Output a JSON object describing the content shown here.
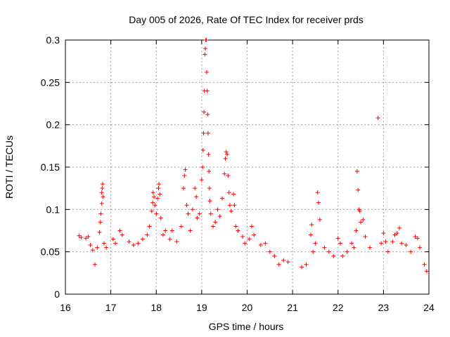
{
  "chart_data": {
    "type": "scatter",
    "title": "Day 005 of 2026, Rate Of TEC Index for receiver prds",
    "xlabel": "GPS time / hours",
    "ylabel": "ROTI / TECUs",
    "xlim": [
      16,
      24
    ],
    "ylim": [
      0,
      0.3
    ],
    "grid": true,
    "marker": "+",
    "color": "#ff0000",
    "x_ticks": [
      "16",
      "17",
      "18",
      "19",
      "20",
      "21",
      "22",
      "23",
      "24"
    ],
    "y_ticks": [
      "0",
      "0.05",
      "0.1",
      "0.15",
      "0.2",
      "0.25",
      "0.3"
    ],
    "x_tick_values": [
      16,
      17,
      18,
      19,
      20,
      21,
      22,
      23,
      24
    ],
    "y_tick_values": [
      0,
      0.05,
      0.1,
      0.15,
      0.2,
      0.25,
      0.3
    ],
    "series": [
      {
        "name": "ROTI",
        "points": [
          [
            16.3,
            0.069
          ],
          [
            16.35,
            0.067
          ],
          [
            16.45,
            0.066
          ],
          [
            16.5,
            0.068
          ],
          [
            16.55,
            0.058
          ],
          [
            16.6,
            0.052
          ],
          [
            16.65,
            0.035
          ],
          [
            16.7,
            0.055
          ],
          [
            16.75,
            0.073
          ],
          [
            16.77,
            0.085
          ],
          [
            16.78,
            0.095
          ],
          [
            16.8,
            0.107
          ],
          [
            16.8,
            0.12
          ],
          [
            16.81,
            0.125
          ],
          [
            16.82,
            0.13
          ],
          [
            16.83,
            0.115
          ],
          [
            16.85,
            0.06
          ],
          [
            16.9,
            0.055
          ],
          [
            17.05,
            0.065
          ],
          [
            17.1,
            0.06
          ],
          [
            17.2,
            0.075
          ],
          [
            17.25,
            0.07
          ],
          [
            17.4,
            0.062
          ],
          [
            17.5,
            0.058
          ],
          [
            17.6,
            0.06
          ],
          [
            17.7,
            0.065
          ],
          [
            17.8,
            0.07
          ],
          [
            17.85,
            0.08
          ],
          [
            17.9,
            0.098
          ],
          [
            17.92,
            0.108
          ],
          [
            17.93,
            0.12
          ],
          [
            17.95,
            0.115
          ],
          [
            17.97,
            0.105
          ],
          [
            18.0,
            0.095
          ],
          [
            18.03,
            0.113
          ],
          [
            18.05,
            0.125
          ],
          [
            18.06,
            0.13
          ],
          [
            18.08,
            0.118
          ],
          [
            18.1,
            0.09
          ],
          [
            18.15,
            0.07
          ],
          [
            18.2,
            0.075
          ],
          [
            18.3,
            0.065
          ],
          [
            18.35,
            0.075
          ],
          [
            18.45,
            0.062
          ],
          [
            18.55,
            0.08
          ],
          [
            18.6,
            0.125
          ],
          [
            18.62,
            0.14
          ],
          [
            18.64,
            0.147
          ],
          [
            18.67,
            0.105
          ],
          [
            18.7,
            0.095
          ],
          [
            18.75,
            0.075
          ],
          [
            18.8,
            0.1
          ],
          [
            18.85,
            0.125
          ],
          [
            18.88,
            0.115
          ],
          [
            18.9,
            0.09
          ],
          [
            18.95,
            0.095
          ],
          [
            19.0,
            0.135
          ],
          [
            19.02,
            0.15
          ],
          [
            19.03,
            0.17
          ],
          [
            19.04,
            0.19
          ],
          [
            19.05,
            0.215
          ],
          [
            19.06,
            0.24
          ],
          [
            19.07,
            0.283
          ],
          [
            19.08,
            0.29
          ],
          [
            19.09,
            0.3
          ],
          [
            19.1,
            0.3
          ],
          [
            19.11,
            0.262
          ],
          [
            19.12,
            0.24
          ],
          [
            19.13,
            0.212
          ],
          [
            19.14,
            0.19
          ],
          [
            19.15,
            0.165
          ],
          [
            19.16,
            0.145
          ],
          [
            19.17,
            0.125
          ],
          [
            19.18,
            0.11
          ],
          [
            19.2,
            0.095
          ],
          [
            19.25,
            0.08
          ],
          [
            19.3,
            0.085
          ],
          [
            19.35,
            0.1
          ],
          [
            19.4,
            0.092
          ],
          [
            19.45,
            0.113
          ],
          [
            19.5,
            0.142
          ],
          [
            19.52,
            0.16
          ],
          [
            19.54,
            0.168
          ],
          [
            19.56,
            0.165
          ],
          [
            19.58,
            0.14
          ],
          [
            19.6,
            0.12
          ],
          [
            19.62,
            0.105
          ],
          [
            19.65,
            0.098
          ],
          [
            19.7,
            0.118
          ],
          [
            19.72,
            0.105
          ],
          [
            19.75,
            0.08
          ],
          [
            19.8,
            0.075
          ],
          [
            19.9,
            0.068
          ],
          [
            19.95,
            0.06
          ],
          [
            20.05,
            0.065
          ],
          [
            20.1,
            0.08
          ],
          [
            20.15,
            0.07
          ],
          [
            20.3,
            0.058
          ],
          [
            20.4,
            0.06
          ],
          [
            20.5,
            0.05
          ],
          [
            20.6,
            0.045
          ],
          [
            20.7,
            0.035
          ],
          [
            20.8,
            0.04
          ],
          [
            20.9,
            0.038
          ],
          [
            21.2,
            0.032
          ],
          [
            21.3,
            0.035
          ],
          [
            21.4,
            0.07
          ],
          [
            21.42,
            0.082
          ],
          [
            21.45,
            0.05
          ],
          [
            21.5,
            0.06
          ],
          [
            21.55,
            0.12
          ],
          [
            21.57,
            0.108
          ],
          [
            21.6,
            0.088
          ],
          [
            21.7,
            0.055
          ],
          [
            21.8,
            0.05
          ],
          [
            21.9,
            0.045
          ],
          [
            22.0,
            0.066
          ],
          [
            22.05,
            0.06
          ],
          [
            22.1,
            0.045
          ],
          [
            22.2,
            0.05
          ],
          [
            22.3,
            0.06
          ],
          [
            22.35,
            0.055
          ],
          [
            22.4,
            0.075
          ],
          [
            22.42,
            0.145
          ],
          [
            22.44,
            0.123
          ],
          [
            22.46,
            0.1
          ],
          [
            22.48,
            0.098
          ],
          [
            22.5,
            0.085
          ],
          [
            22.55,
            0.088
          ],
          [
            22.6,
            0.068
          ],
          [
            22.7,
            0.055
          ],
          [
            22.88,
            0.208
          ],
          [
            22.95,
            0.06
          ],
          [
            23.0,
            0.072
          ],
          [
            23.05,
            0.062
          ],
          [
            23.1,
            0.05
          ],
          [
            23.2,
            0.062
          ],
          [
            23.25,
            0.07
          ],
          [
            23.3,
            0.072
          ],
          [
            23.35,
            0.078
          ],
          [
            23.4,
            0.06
          ],
          [
            23.5,
            0.058
          ],
          [
            23.6,
            0.05
          ],
          [
            23.7,
            0.068
          ],
          [
            23.75,
            0.066
          ],
          [
            23.8,
            0.055
          ],
          [
            23.9,
            0.035
          ],
          [
            23.95,
            0.027
          ]
        ]
      }
    ]
  }
}
